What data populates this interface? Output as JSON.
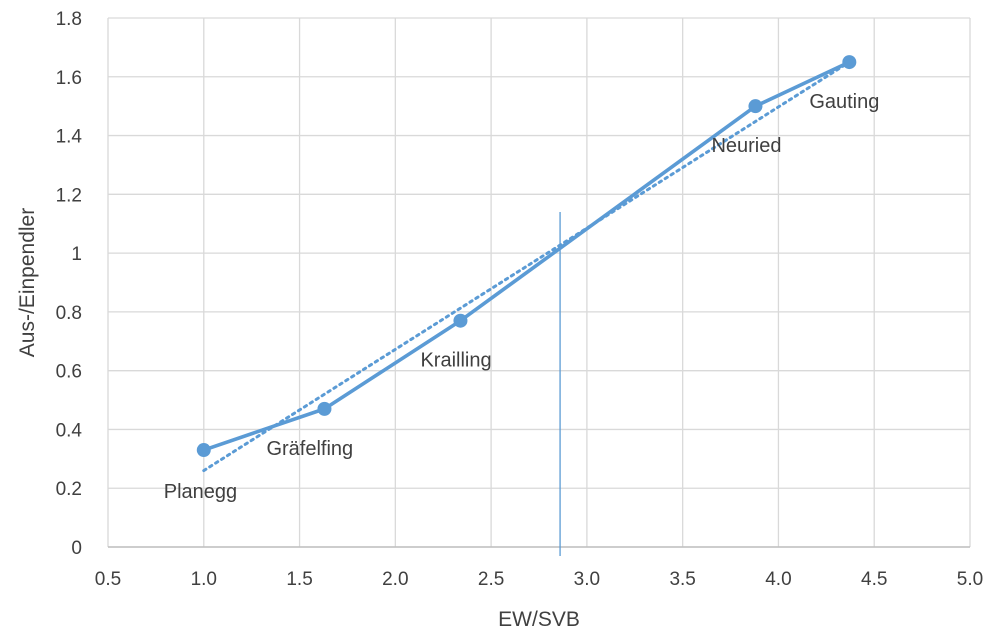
{
  "chart_data": {
    "type": "scatter",
    "title": "",
    "xlabel": "EW/SVB",
    "ylabel": "Aus-/Einpendler",
    "xlim": [
      0.5,
      5.0
    ],
    "ylim": [
      0,
      1.8
    ],
    "x_ticks": [
      0.5,
      1.0,
      1.5,
      2.0,
      2.5,
      3.0,
      3.5,
      4.0,
      4.5,
      5.0
    ],
    "x_tick_labels": [
      "0.5",
      "1.0",
      "1.5",
      "2.0",
      "2.5",
      "3.0",
      "3.5",
      "4.0",
      "4.5",
      "5.0"
    ],
    "y_ticks": [
      0,
      0.2,
      0.4,
      0.6,
      0.8,
      1.0,
      1.2,
      1.4,
      1.6,
      1.8
    ],
    "y_tick_labels": [
      "0",
      "0.2",
      "0.4",
      "0.6",
      "0.8",
      "1",
      "1.2",
      "1.4",
      "1.6",
      "1.8"
    ],
    "grid": true,
    "series": [
      {
        "style": "line-with-markers",
        "color": "#5b9bd5",
        "points": [
          {
            "label": "Planegg",
            "x": 1.0,
            "y": 0.33
          },
          {
            "label": "Gräfelfing",
            "x": 1.63,
            "y": 0.47
          },
          {
            "label": "Krailling",
            "x": 2.34,
            "y": 0.77
          },
          {
            "label": "Neuried",
            "x": 3.88,
            "y": 1.5
          },
          {
            "label": "Gauting",
            "x": 4.37,
            "y": 1.65
          }
        ]
      },
      {
        "style": "dotted-trendline",
        "color": "#5b9bd5",
        "x": [
          1.0,
          4.37
        ],
        "y": [
          0.26,
          1.65
        ]
      }
    ],
    "reference_line": {
      "x": 2.86,
      "y_from": 0,
      "y_to": 1.14,
      "color": "#5b9bd5"
    }
  }
}
